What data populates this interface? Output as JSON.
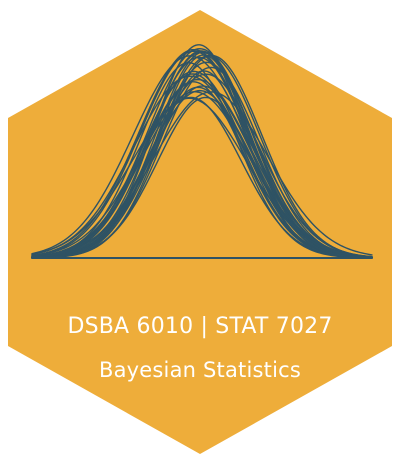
{
  "sticker": {
    "course_code": "DSBA 6010 | STAT 7027",
    "course_title": "Bayesian Statistics",
    "fill_color": "#EEAD3A",
    "curve_color": "#2F5364",
    "background_color": "#FFFFFF",
    "shape": "hexagon",
    "emblem": "overlapping-bell-curves"
  }
}
